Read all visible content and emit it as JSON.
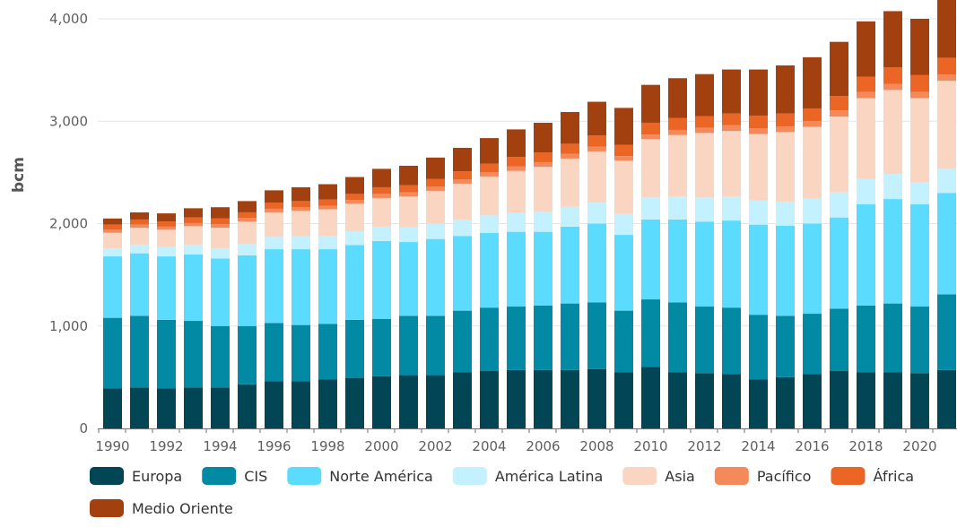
{
  "chart_data": {
    "type": "bar",
    "stacked": true,
    "title": "",
    "xlabel": "",
    "ylabel": "bcm",
    "ylim": [
      0,
      4000
    ],
    "yticks": [
      0,
      1000,
      2000,
      3000,
      4000
    ],
    "ytick_labels": [
      "0",
      "1,000",
      "2,000",
      "3,000",
      "4,000"
    ],
    "x_tick_labels": [
      "1990",
      "1992",
      "1994",
      "1996",
      "1998",
      "2000",
      "2002",
      "2004",
      "2006",
      "2008",
      "2010",
      "2012",
      "2014",
      "2016",
      "2018",
      "2020"
    ],
    "categories": [
      1990,
      1991,
      1992,
      1993,
      1994,
      1995,
      1996,
      1997,
      1998,
      1999,
      2000,
      2001,
      2002,
      2003,
      2004,
      2005,
      2006,
      2007,
      2008,
      2009,
      2010,
      2011,
      2012,
      2013,
      2014,
      2015,
      2016,
      2017,
      2018,
      2019,
      2020,
      2021
    ],
    "grid": "horizontal",
    "legend_position": "bottom",
    "series": [
      {
        "name": "Europa",
        "color": "#024554",
        "values": [
          390,
          400,
          390,
          400,
          400,
          430,
          460,
          460,
          480,
          490,
          510,
          520,
          520,
          550,
          560,
          570,
          570,
          570,
          580,
          550,
          600,
          550,
          540,
          530,
          480,
          500,
          530,
          560,
          550,
          550,
          540,
          570
        ]
      },
      {
        "name": "CIS",
        "color": "#028aa5",
        "values": [
          690,
          700,
          670,
          650,
          600,
          570,
          570,
          550,
          540,
          570,
          560,
          580,
          580,
          600,
          620,
          620,
          630,
          650,
          650,
          600,
          660,
          680,
          650,
          650,
          630,
          600,
          590,
          610,
          650,
          670,
          650,
          740
        ]
      },
      {
        "name": "Norte América",
        "color": "#5bdcff",
        "values": [
          600,
          610,
          620,
          650,
          660,
          690,
          720,
          740,
          730,
          730,
          760,
          720,
          750,
          730,
          730,
          730,
          720,
          750,
          770,
          740,
          780,
          810,
          830,
          850,
          880,
          880,
          880,
          890,
          990,
          1020,
          1000,
          990
        ]
      },
      {
        "name": "América Latina",
        "color": "#c3f1ff",
        "values": [
          80,
          85,
          90,
          95,
          100,
          110,
          120,
          125,
          130,
          135,
          140,
          145,
          150,
          160,
          170,
          185,
          195,
          195,
          205,
          205,
          215,
          225,
          235,
          235,
          235,
          235,
          245,
          245,
          245,
          245,
          215,
          235
        ]
      },
      {
        "name": "Asia",
        "color": "#f9d5c2",
        "values": [
          150,
          165,
          170,
          180,
          200,
          220,
          240,
          250,
          260,
          270,
          280,
          300,
          320,
          350,
          380,
          410,
          440,
          470,
          500,
          520,
          570,
          600,
          630,
          640,
          650,
          680,
          700,
          740,
          790,
          820,
          820,
          860
        ]
      },
      {
        "name": "Pacífico",
        "color": "#f48a5c",
        "values": [
          30,
          30,
          30,
          30,
          35,
          35,
          35,
          35,
          35,
          35,
          40,
          40,
          40,
          40,
          40,
          45,
          45,
          45,
          45,
          45,
          45,
          50,
          50,
          55,
          55,
          55,
          55,
          60,
          60,
          60,
          60,
          60
        ]
      },
      {
        "name": "África",
        "color": "#eb6524",
        "values": [
          50,
          50,
          50,
          55,
          55,
          55,
          60,
          60,
          60,
          60,
          65,
          70,
          75,
          80,
          85,
          90,
          95,
          100,
          110,
          110,
          115,
          115,
          115,
          115,
          125,
          125,
          125,
          140,
          150,
          160,
          165,
          165
        ]
      },
      {
        "name": "Medio Oriente",
        "color": "#a2400f",
        "values": [
          60,
          70,
          80,
          90,
          110,
          110,
          120,
          135,
          150,
          165,
          180,
          190,
          210,
          230,
          250,
          270,
          290,
          310,
          330,
          360,
          370,
          390,
          410,
          430,
          450,
          470,
          500,
          530,
          540,
          550,
          550,
          580
        ]
      }
    ]
  }
}
